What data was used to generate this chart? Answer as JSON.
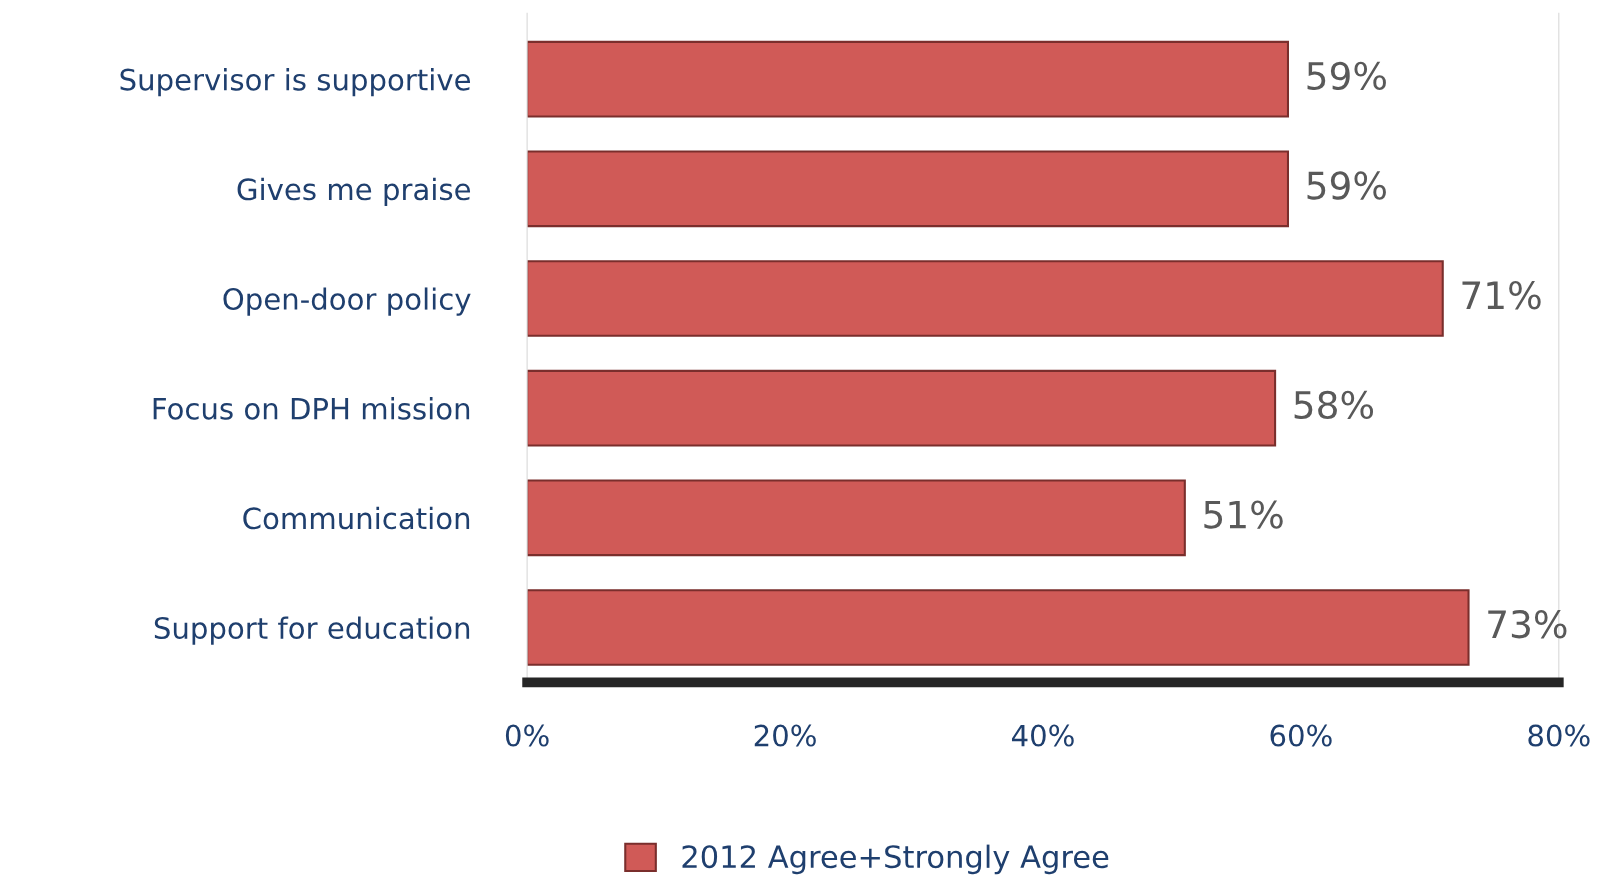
{
  "chart_data": {
    "type": "bar",
    "orientation": "horizontal",
    "categories": [
      "Supervisor is supportive",
      "Gives me praise",
      "Open-door policy",
      "Focus on DPH mission",
      "Communication",
      "Support for education"
    ],
    "series": [
      {
        "name": "2012 Agree+Strongly Agree",
        "color": "#d05a57",
        "values": [
          59,
          59,
          71,
          58,
          51,
          73
        ],
        "value_labels": [
          "59%",
          "59%",
          "71%",
          "58%",
          "51%",
          "73%"
        ]
      }
    ],
    "xlim": [
      0,
      80
    ],
    "xticks": [
      {
        "value": 0,
        "label": "0%"
      },
      {
        "value": 20,
        "label": "20%"
      },
      {
        "value": 40,
        "label": "40%"
      },
      {
        "value": 60,
        "label": "60%"
      },
      {
        "value": 80,
        "label": "80%"
      }
    ],
    "grid": false,
    "legend": "bottom"
  }
}
